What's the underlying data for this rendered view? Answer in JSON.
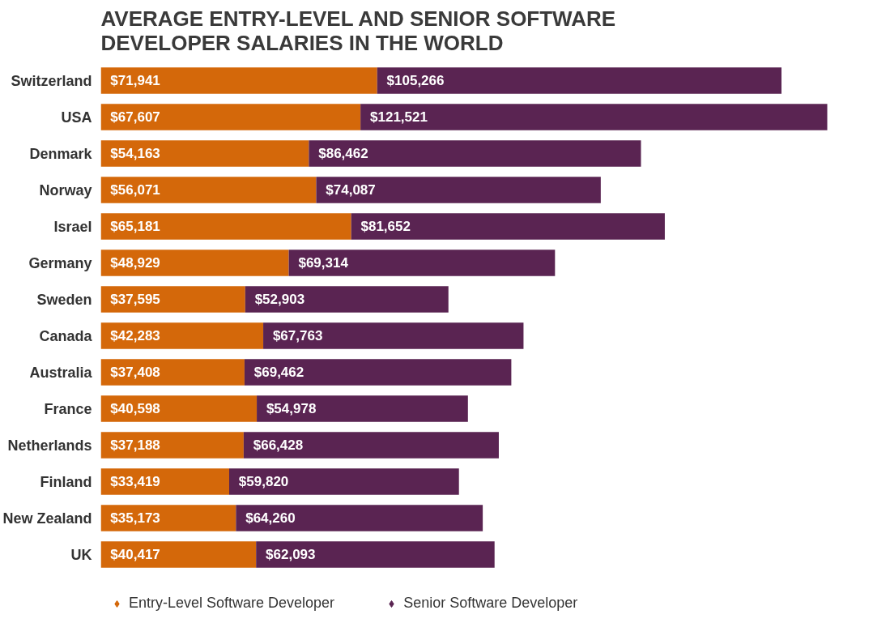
{
  "chart_data": {
    "type": "bar",
    "orientation": "horizontal",
    "stacked": true,
    "title": "AVERAGE ENTRY-LEVEL AND SENIOR SOFTWARE DEVELOPER SALARIES IN THE WORLD",
    "categories": [
      "Switzerland",
      "USA",
      "Denmark",
      "Norway",
      "Israel",
      "Germany",
      "Sweden",
      "Canada",
      "Australia",
      "France",
      "Netherlands",
      "Finland",
      "New Zealand",
      "UK"
    ],
    "series": [
      {
        "name": "Entry-Level Software Developer",
        "color": "#d4680a",
        "values": [
          71941,
          67607,
          54163,
          56071,
          65181,
          48929,
          37595,
          42283,
          37408,
          40598,
          37188,
          33419,
          35173,
          40417
        ],
        "value_labels": [
          "$71,941",
          "$67,607",
          "$54,163",
          "$56,071",
          "$65,181",
          "$48,929",
          "$37,595",
          "$42,283",
          "$37,408",
          "$40,598",
          "$37,188",
          "$33,419",
          "$35,173",
          "$40,417"
        ]
      },
      {
        "name": "Senior Software Developer",
        "color": "#5a2452",
        "values": [
          105266,
          121521,
          86462,
          74087,
          81652,
          69314,
          52903,
          67763,
          69462,
          54978,
          66428,
          59820,
          64260,
          62093
        ],
        "value_labels": [
          "$105,266",
          "$121,521",
          "$86,462",
          "$74,087",
          "$81,652",
          "$69,314",
          "$52,903",
          "$67,763",
          "$69,462",
          "$54,978",
          "$66,428",
          "$59,820",
          "$64,260",
          "$62,093"
        ]
      }
    ],
    "legend": "bottom left",
    "marker": "diamond",
    "grid": false
  }
}
